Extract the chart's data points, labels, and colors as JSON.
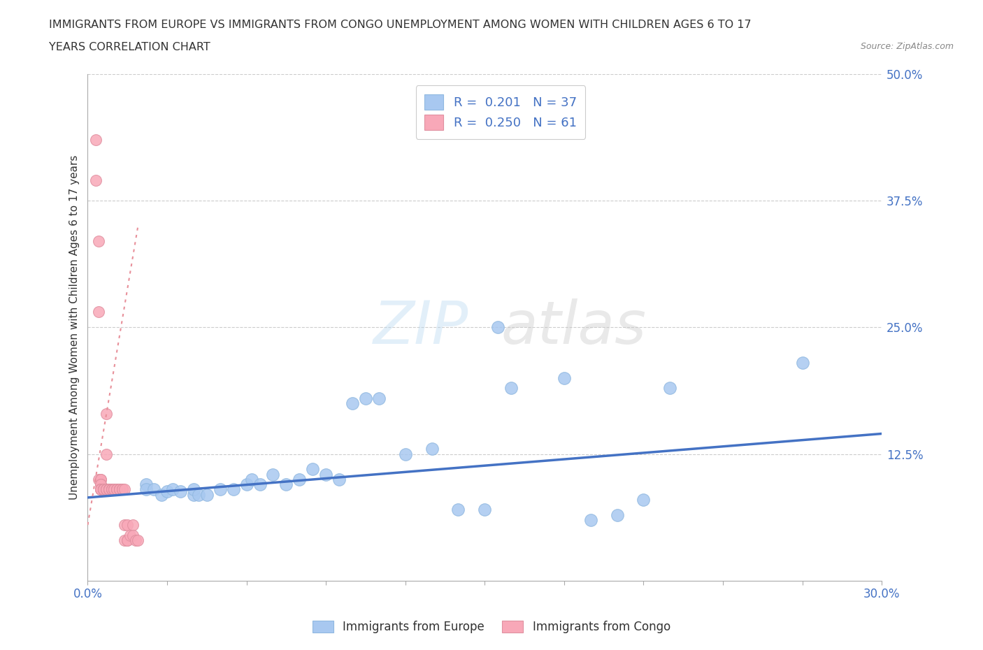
{
  "title_line1": "IMMIGRANTS FROM EUROPE VS IMMIGRANTS FROM CONGO UNEMPLOYMENT AMONG WOMEN WITH CHILDREN AGES 6 TO 17",
  "title_line2": "YEARS CORRELATION CHART",
  "source": "Source: ZipAtlas.com",
  "ylabel": "Unemployment Among Women with Children Ages 6 to 17 years",
  "ytick_labels": [
    "50.0%",
    "37.5%",
    "25.0%",
    "12.5%"
  ],
  "ytick_values": [
    0.5,
    0.375,
    0.25,
    0.125
  ],
  "xtick_values": [
    0.0,
    0.03,
    0.06,
    0.09,
    0.12,
    0.15,
    0.18,
    0.21,
    0.24,
    0.27,
    0.3
  ],
  "xlim": [
    0.0,
    0.3
  ],
  "ylim": [
    0.0,
    0.5
  ],
  "legend_europe": "R =  0.201   N = 37",
  "legend_congo": "R =  0.250   N = 61",
  "europe_color": "#a8c8f0",
  "congo_color": "#f8a8b8",
  "europe_line_color": "#4472c4",
  "congo_line_color": "#e8909a",
  "watermark": "ZIPatlas",
  "europe_scatter_x": [
    0.022,
    0.022,
    0.025,
    0.028,
    0.03,
    0.032,
    0.035,
    0.04,
    0.04,
    0.042,
    0.045,
    0.05,
    0.055,
    0.06,
    0.062,
    0.065,
    0.07,
    0.075,
    0.08,
    0.085,
    0.09,
    0.095,
    0.1,
    0.105,
    0.11,
    0.12,
    0.13,
    0.14,
    0.15,
    0.155,
    0.16,
    0.18,
    0.19,
    0.2,
    0.21,
    0.22,
    0.27
  ],
  "europe_scatter_y": [
    0.095,
    0.09,
    0.09,
    0.085,
    0.088,
    0.09,
    0.088,
    0.085,
    0.09,
    0.085,
    0.085,
    0.09,
    0.09,
    0.095,
    0.1,
    0.095,
    0.105,
    0.095,
    0.1,
    0.11,
    0.105,
    0.1,
    0.175,
    0.18,
    0.18,
    0.125,
    0.13,
    0.07,
    0.07,
    0.25,
    0.19,
    0.2,
    0.06,
    0.065,
    0.08,
    0.19,
    0.215
  ],
  "congo_scatter_x": [
    0.003,
    0.003,
    0.004,
    0.004,
    0.004,
    0.005,
    0.005,
    0.005,
    0.005,
    0.005,
    0.005,
    0.005,
    0.005,
    0.006,
    0.006,
    0.006,
    0.006,
    0.006,
    0.006,
    0.007,
    0.007,
    0.007,
    0.007,
    0.007,
    0.007,
    0.008,
    0.008,
    0.008,
    0.008,
    0.008,
    0.008,
    0.009,
    0.009,
    0.009,
    0.009,
    0.009,
    0.01,
    0.01,
    0.01,
    0.01,
    0.011,
    0.011,
    0.011,
    0.012,
    0.012,
    0.012,
    0.012,
    0.013,
    0.013,
    0.013,
    0.014,
    0.014,
    0.014,
    0.015,
    0.015,
    0.015,
    0.016,
    0.017,
    0.017,
    0.018,
    0.019
  ],
  "congo_scatter_y": [
    0.435,
    0.395,
    0.335,
    0.265,
    0.1,
    0.1,
    0.1,
    0.095,
    0.095,
    0.09,
    0.09,
    0.09,
    0.09,
    0.09,
    0.09,
    0.09,
    0.09,
    0.09,
    0.09,
    0.165,
    0.125,
    0.09,
    0.09,
    0.09,
    0.09,
    0.09,
    0.09,
    0.09,
    0.09,
    0.09,
    0.09,
    0.09,
    0.09,
    0.09,
    0.09,
    0.09,
    0.09,
    0.09,
    0.09,
    0.09,
    0.09,
    0.09,
    0.09,
    0.09,
    0.09,
    0.09,
    0.09,
    0.09,
    0.09,
    0.09,
    0.09,
    0.055,
    0.04,
    0.055,
    0.04,
    0.04,
    0.045,
    0.055,
    0.045,
    0.04,
    0.04
  ],
  "europe_trend_x": [
    0.0,
    0.3
  ],
  "europe_trend_y": [
    0.082,
    0.145
  ],
  "congo_trend_x": [
    0.0,
    0.019
  ],
  "congo_trend_y": [
    0.055,
    0.35
  ]
}
